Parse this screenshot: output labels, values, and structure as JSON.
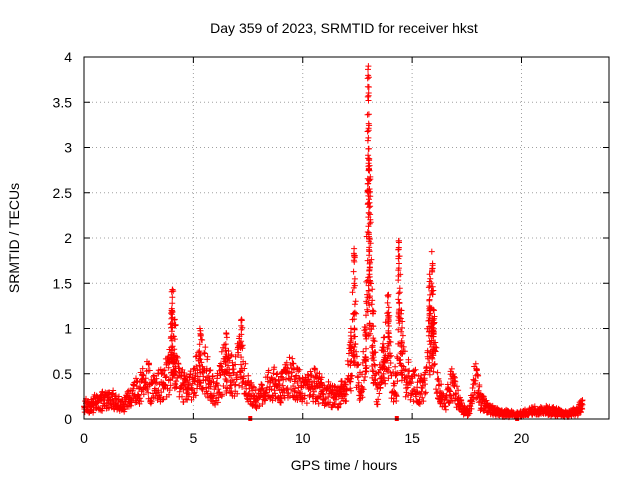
{
  "chart_data": {
    "type": "scatter",
    "title": "Day 359 of 2023, SRMTID for receiver hkst",
    "xlabel": "GPS time / hours",
    "ylabel": "SRMTID / TECUs",
    "xlim": [
      0,
      24
    ],
    "ylim": [
      0,
      4
    ],
    "x_ticks": [
      0,
      5,
      10,
      15,
      20
    ],
    "y_ticks": [
      0,
      0.5,
      1,
      1.5,
      2,
      2.5,
      3,
      3.5,
      4
    ],
    "x_tick_labels": [
      "0",
      "5",
      "10",
      "15",
      "20"
    ],
    "y_tick_labels": [
      "0",
      "0.5",
      "1",
      "1.5",
      "2",
      "2.5",
      "3",
      "3.5",
      "4"
    ],
    "grid": true,
    "marker": "+",
    "series_color": "#ff0000",
    "baseline_markers_x": [
      7.6,
      14.3,
      19.8
    ],
    "series": [
      {
        "name": "SRMTID",
        "envelope_points": [
          [
            0.0,
            0.2
          ],
          [
            0.3,
            0.22
          ],
          [
            0.6,
            0.26
          ],
          [
            1.0,
            0.3
          ],
          [
            1.2,
            0.35
          ],
          [
            1.5,
            0.25
          ],
          [
            1.8,
            0.2
          ],
          [
            2.0,
            0.3
          ],
          [
            2.3,
            0.4
          ],
          [
            2.6,
            0.5
          ],
          [
            2.9,
            0.65
          ],
          [
            3.1,
            0.45
          ],
          [
            3.4,
            0.5
          ],
          [
            3.7,
            0.6
          ],
          [
            3.9,
            0.8
          ],
          [
            4.0,
            1.2
          ],
          [
            4.05,
            1.43
          ],
          [
            4.15,
            1.1
          ],
          [
            4.3,
            0.6
          ],
          [
            4.6,
            0.5
          ],
          [
            5.0,
            0.55
          ],
          [
            5.3,
            1.0
          ],
          [
            5.5,
            0.8
          ],
          [
            5.8,
            0.5
          ],
          [
            6.0,
            0.4
          ],
          [
            6.2,
            0.6
          ],
          [
            6.5,
            0.95
          ],
          [
            6.8,
            0.7
          ],
          [
            7.0,
            0.75
          ],
          [
            7.2,
            1.1
          ],
          [
            7.4,
            0.6
          ],
          [
            7.6,
            0.4
          ],
          [
            7.9,
            0.3
          ],
          [
            8.2,
            0.4
          ],
          [
            8.6,
            0.6
          ],
          [
            9.0,
            0.5
          ],
          [
            9.5,
            0.7
          ],
          [
            10.0,
            0.45
          ],
          [
            10.5,
            0.55
          ],
          [
            11.0,
            0.4
          ],
          [
            11.5,
            0.35
          ],
          [
            12.0,
            0.45
          ],
          [
            12.2,
            1.0
          ],
          [
            12.35,
            1.8
          ],
          [
            12.5,
            0.6
          ],
          [
            12.7,
            0.5
          ],
          [
            12.9,
            1.3
          ],
          [
            13.0,
            3.9
          ],
          [
            13.05,
            2.8
          ],
          [
            13.2,
            1.2
          ],
          [
            13.4,
            0.4
          ],
          [
            13.7,
            0.9
          ],
          [
            13.9,
            1.35
          ],
          [
            14.1,
            0.5
          ],
          [
            14.3,
            0.6
          ],
          [
            14.4,
            1.95
          ],
          [
            14.5,
            1.2
          ],
          [
            14.7,
            0.7
          ],
          [
            15.0,
            0.6
          ],
          [
            15.3,
            0.45
          ],
          [
            15.6,
            0.5
          ],
          [
            15.8,
            1.6
          ],
          [
            15.9,
            1.85
          ],
          [
            16.0,
            1.2
          ],
          [
            16.2,
            0.5
          ],
          [
            16.5,
            0.2
          ],
          [
            16.8,
            0.6
          ],
          [
            17.0,
            0.4
          ],
          [
            17.3,
            0.15
          ],
          [
            17.6,
            0.1
          ],
          [
            17.9,
            0.7
          ],
          [
            18.1,
            0.3
          ],
          [
            18.5,
            0.15
          ],
          [
            19.0,
            0.1
          ],
          [
            19.5,
            0.08
          ],
          [
            20.0,
            0.08
          ],
          [
            20.5,
            0.12
          ],
          [
            21.0,
            0.15
          ],
          [
            21.5,
            0.12
          ],
          [
            22.0,
            0.08
          ],
          [
            22.5,
            0.12
          ],
          [
            22.8,
            0.22
          ]
        ]
      }
    ]
  }
}
